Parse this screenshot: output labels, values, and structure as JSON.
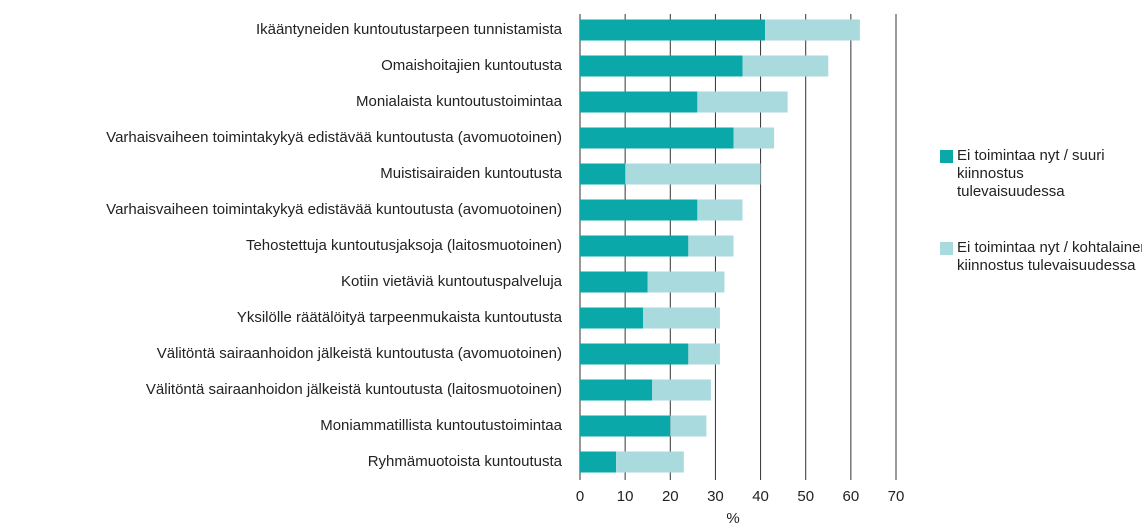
{
  "chart_data": {
    "type": "stacked-barh",
    "categories": [
      "Ikääntyneiden kuntoutustarpeen tunnistamista",
      "Omaishoitajien kuntoutusta",
      "Monialaista kuntoutustoimintaa",
      "Varhaisvaiheen toimintakykyä edistävää kuntoutusta (avomuotoinen)",
      "Muistisairaiden kuntoutusta",
      "Varhaisvaiheen toimintakykyä edistävää kuntoutusta (avomuotoinen)",
      "Tehostettuja kuntoutusjaksoja (laitosmuotoinen)",
      "Kotiin vietäviä kuntoutuspalveluja",
      "Yksilölle räätälöityä tarpeenmukaista kuntoutusta",
      "Välitöntä sairaanhoidon jälkeistä kuntoutusta (avomuotoinen)",
      "Välitöntä sairaanhoidon jälkeistä kuntoutusta (laitosmuotoinen)",
      "Moniammatillista kuntoutustoimintaa",
      "Ryhmämuotoista kuntoutusta"
    ],
    "series": [
      {
        "name": "Ei toimintaa nyt / suuri kiinnostus tulevaisuudessa",
        "color": "#0aa8a8",
        "values": [
          41,
          36,
          26,
          34,
          10,
          26,
          24,
          15,
          14,
          24,
          16,
          20,
          8
        ]
      },
      {
        "name": "Ei toimintaa nyt / kohtalainen kiinnostus tulevaisuudessa",
        "color": "#a9dadd",
        "values": [
          21,
          19,
          20,
          9,
          30,
          10,
          10,
          17,
          17,
          7,
          13,
          8,
          15
        ]
      }
    ],
    "xlabel": "%",
    "xlim": [
      0,
      70
    ],
    "xticks": [
      0,
      10,
      20,
      30,
      40,
      50,
      60,
      70
    ],
    "grid": true
  }
}
